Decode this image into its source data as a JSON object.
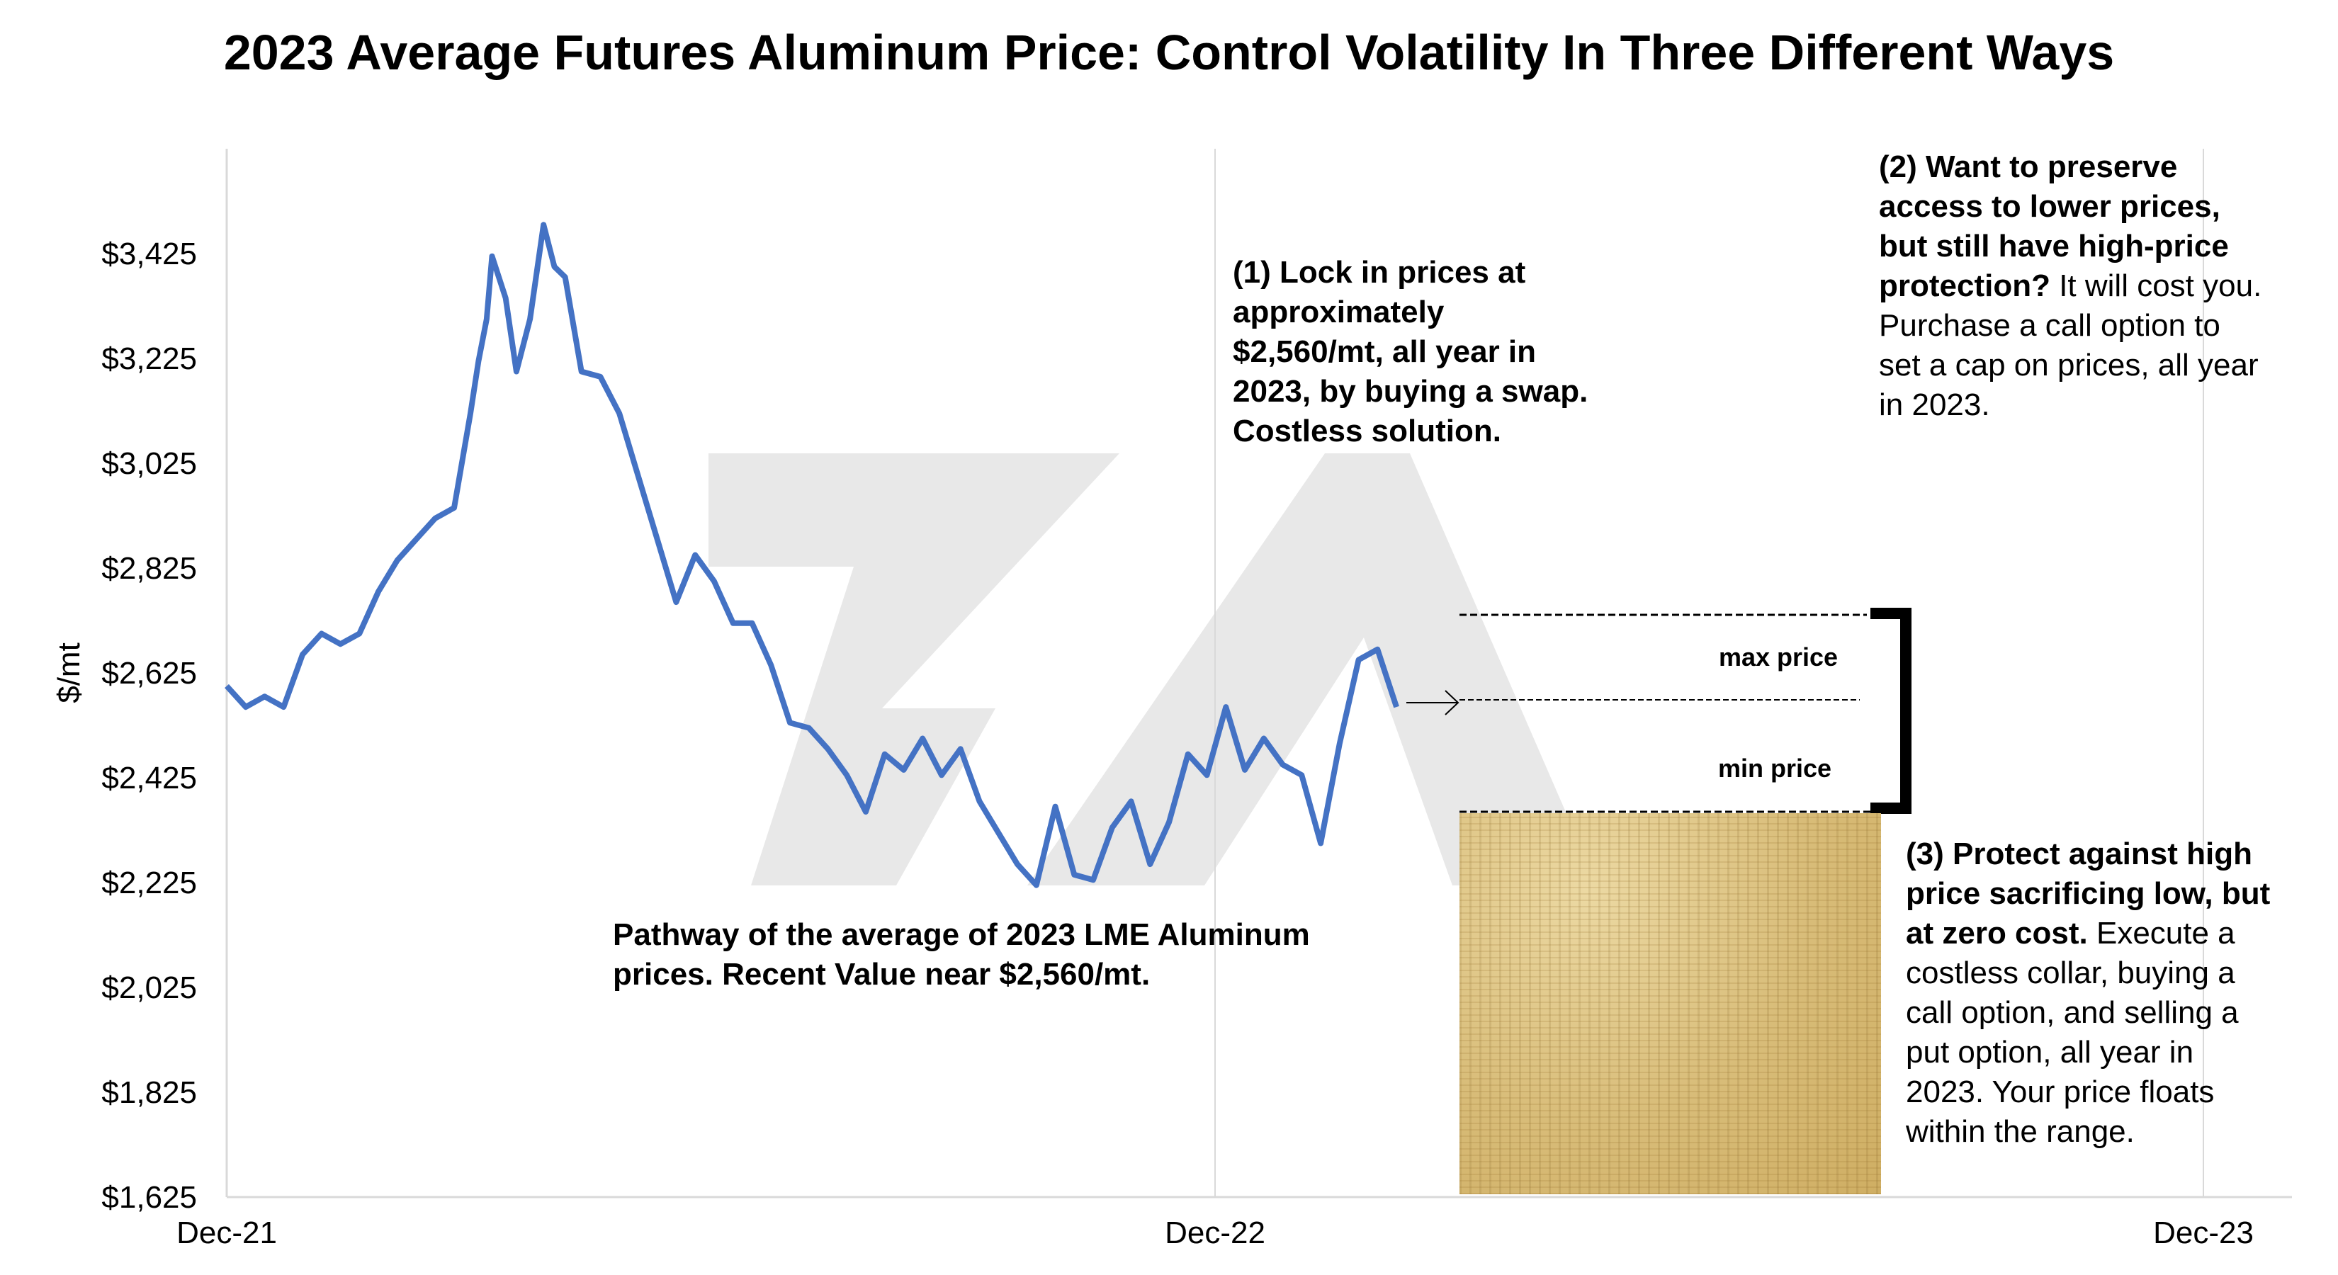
{
  "chart_data": {
    "type": "line",
    "title": "2023 Average Futures Aluminum Price: Control Volatility In Three Different Ways",
    "ylabel": "$/mt",
    "xlabel": "",
    "ylim": [
      1625,
      3625
    ],
    "yticks": [
      1625,
      1825,
      2025,
      2225,
      2425,
      2625,
      2825,
      3025,
      3225,
      3425
    ],
    "ytick_labels": [
      "$1,625",
      "$1,825",
      "$2,025",
      "$2,225",
      "$2,425",
      "$2,625",
      "$2,825",
      "$3,025",
      "$3,225",
      "$3,425"
    ],
    "xlim": [
      "2021-12-01",
      "2023-12-31"
    ],
    "xticks": [
      "2021-12-01",
      "2022-12-01",
      "2023-12-01"
    ],
    "xtick_labels": [
      "Dec-21",
      "Dec-22",
      "Dec-23"
    ],
    "grid": "vertical",
    "legend": "none",
    "series": [
      {
        "color": "#4472C4",
        "x": [
          "2021-12-01",
          "2021-12-08",
          "2021-12-15",
          "2021-12-22",
          "2021-12-29",
          "2022-01-05",
          "2022-01-12",
          "2022-01-19",
          "2022-01-26",
          "2022-02-02",
          "2022-02-09",
          "2022-02-16",
          "2022-02-23",
          "2022-03-01",
          "2022-03-04",
          "2022-03-07",
          "2022-03-09",
          "2022-03-14",
          "2022-03-18",
          "2022-03-23",
          "2022-03-28",
          "2022-04-01",
          "2022-04-05",
          "2022-04-11",
          "2022-04-18",
          "2022-04-25",
          "2022-05-02",
          "2022-05-09",
          "2022-05-16",
          "2022-05-23",
          "2022-05-30",
          "2022-06-06",
          "2022-06-13",
          "2022-06-20",
          "2022-06-27",
          "2022-07-04",
          "2022-07-11",
          "2022-07-18",
          "2022-07-25",
          "2022-08-01",
          "2022-08-08",
          "2022-08-15",
          "2022-08-22",
          "2022-08-29",
          "2022-09-05",
          "2022-09-12",
          "2022-09-19",
          "2022-09-26",
          "2022-10-03",
          "2022-10-10",
          "2022-10-17",
          "2022-10-24",
          "2022-10-31",
          "2022-11-07",
          "2022-11-14",
          "2022-11-21",
          "2022-11-28",
          "2022-12-05",
          "2022-12-12",
          "2022-12-19",
          "2022-12-26",
          "2023-01-02",
          "2023-01-09",
          "2023-01-16",
          "2023-01-23",
          "2023-01-30",
          "2023-02-06"
        ],
        "values": [
          2600,
          2560,
          2580,
          2560,
          2660,
          2700,
          2680,
          2700,
          2780,
          2840,
          2880,
          2920,
          2940,
          3120,
          3220,
          3300,
          3420,
          3340,
          3200,
          3300,
          3480,
          3400,
          3380,
          3200,
          3190,
          3120,
          3000,
          2880,
          2760,
          2850,
          2800,
          2720,
          2720,
          2640,
          2530,
          2520,
          2480,
          2430,
          2360,
          2470,
          2440,
          2500,
          2430,
          2480,
          2380,
          2320,
          2260,
          2220,
          2370,
          2240,
          2230,
          2330,
          2380,
          2260,
          2340,
          2470,
          2430,
          2560,
          2440,
          2500,
          2450,
          2430,
          2300,
          2490,
          2650,
          2670,
          2560
        ]
      }
    ],
    "annotations": {
      "pathway": "Pathway of the average of 2023 LME Aluminum prices.  Recent Value near $2,560/mt.",
      "opt1": "(1) Lock in prices at approximately $2,560/mt, all year in 2023, by buying a swap. Costless solution.",
      "opt2_bold": "(2) Want to preserve access to lower prices, but still have high-price protection?",
      "opt2_rest": " It will cost you. Purchase a call option to set a cap on prices, all year in 2023.",
      "opt3_bold": "(3) Protect against high price sacrificing low, but at zero cost.",
      "opt3_rest": " Execute a costless collar, buying a call option, and selling a put option, all year in 2023. Your price floats within the range.",
      "max_label": "max price",
      "min_label": "min price"
    }
  }
}
